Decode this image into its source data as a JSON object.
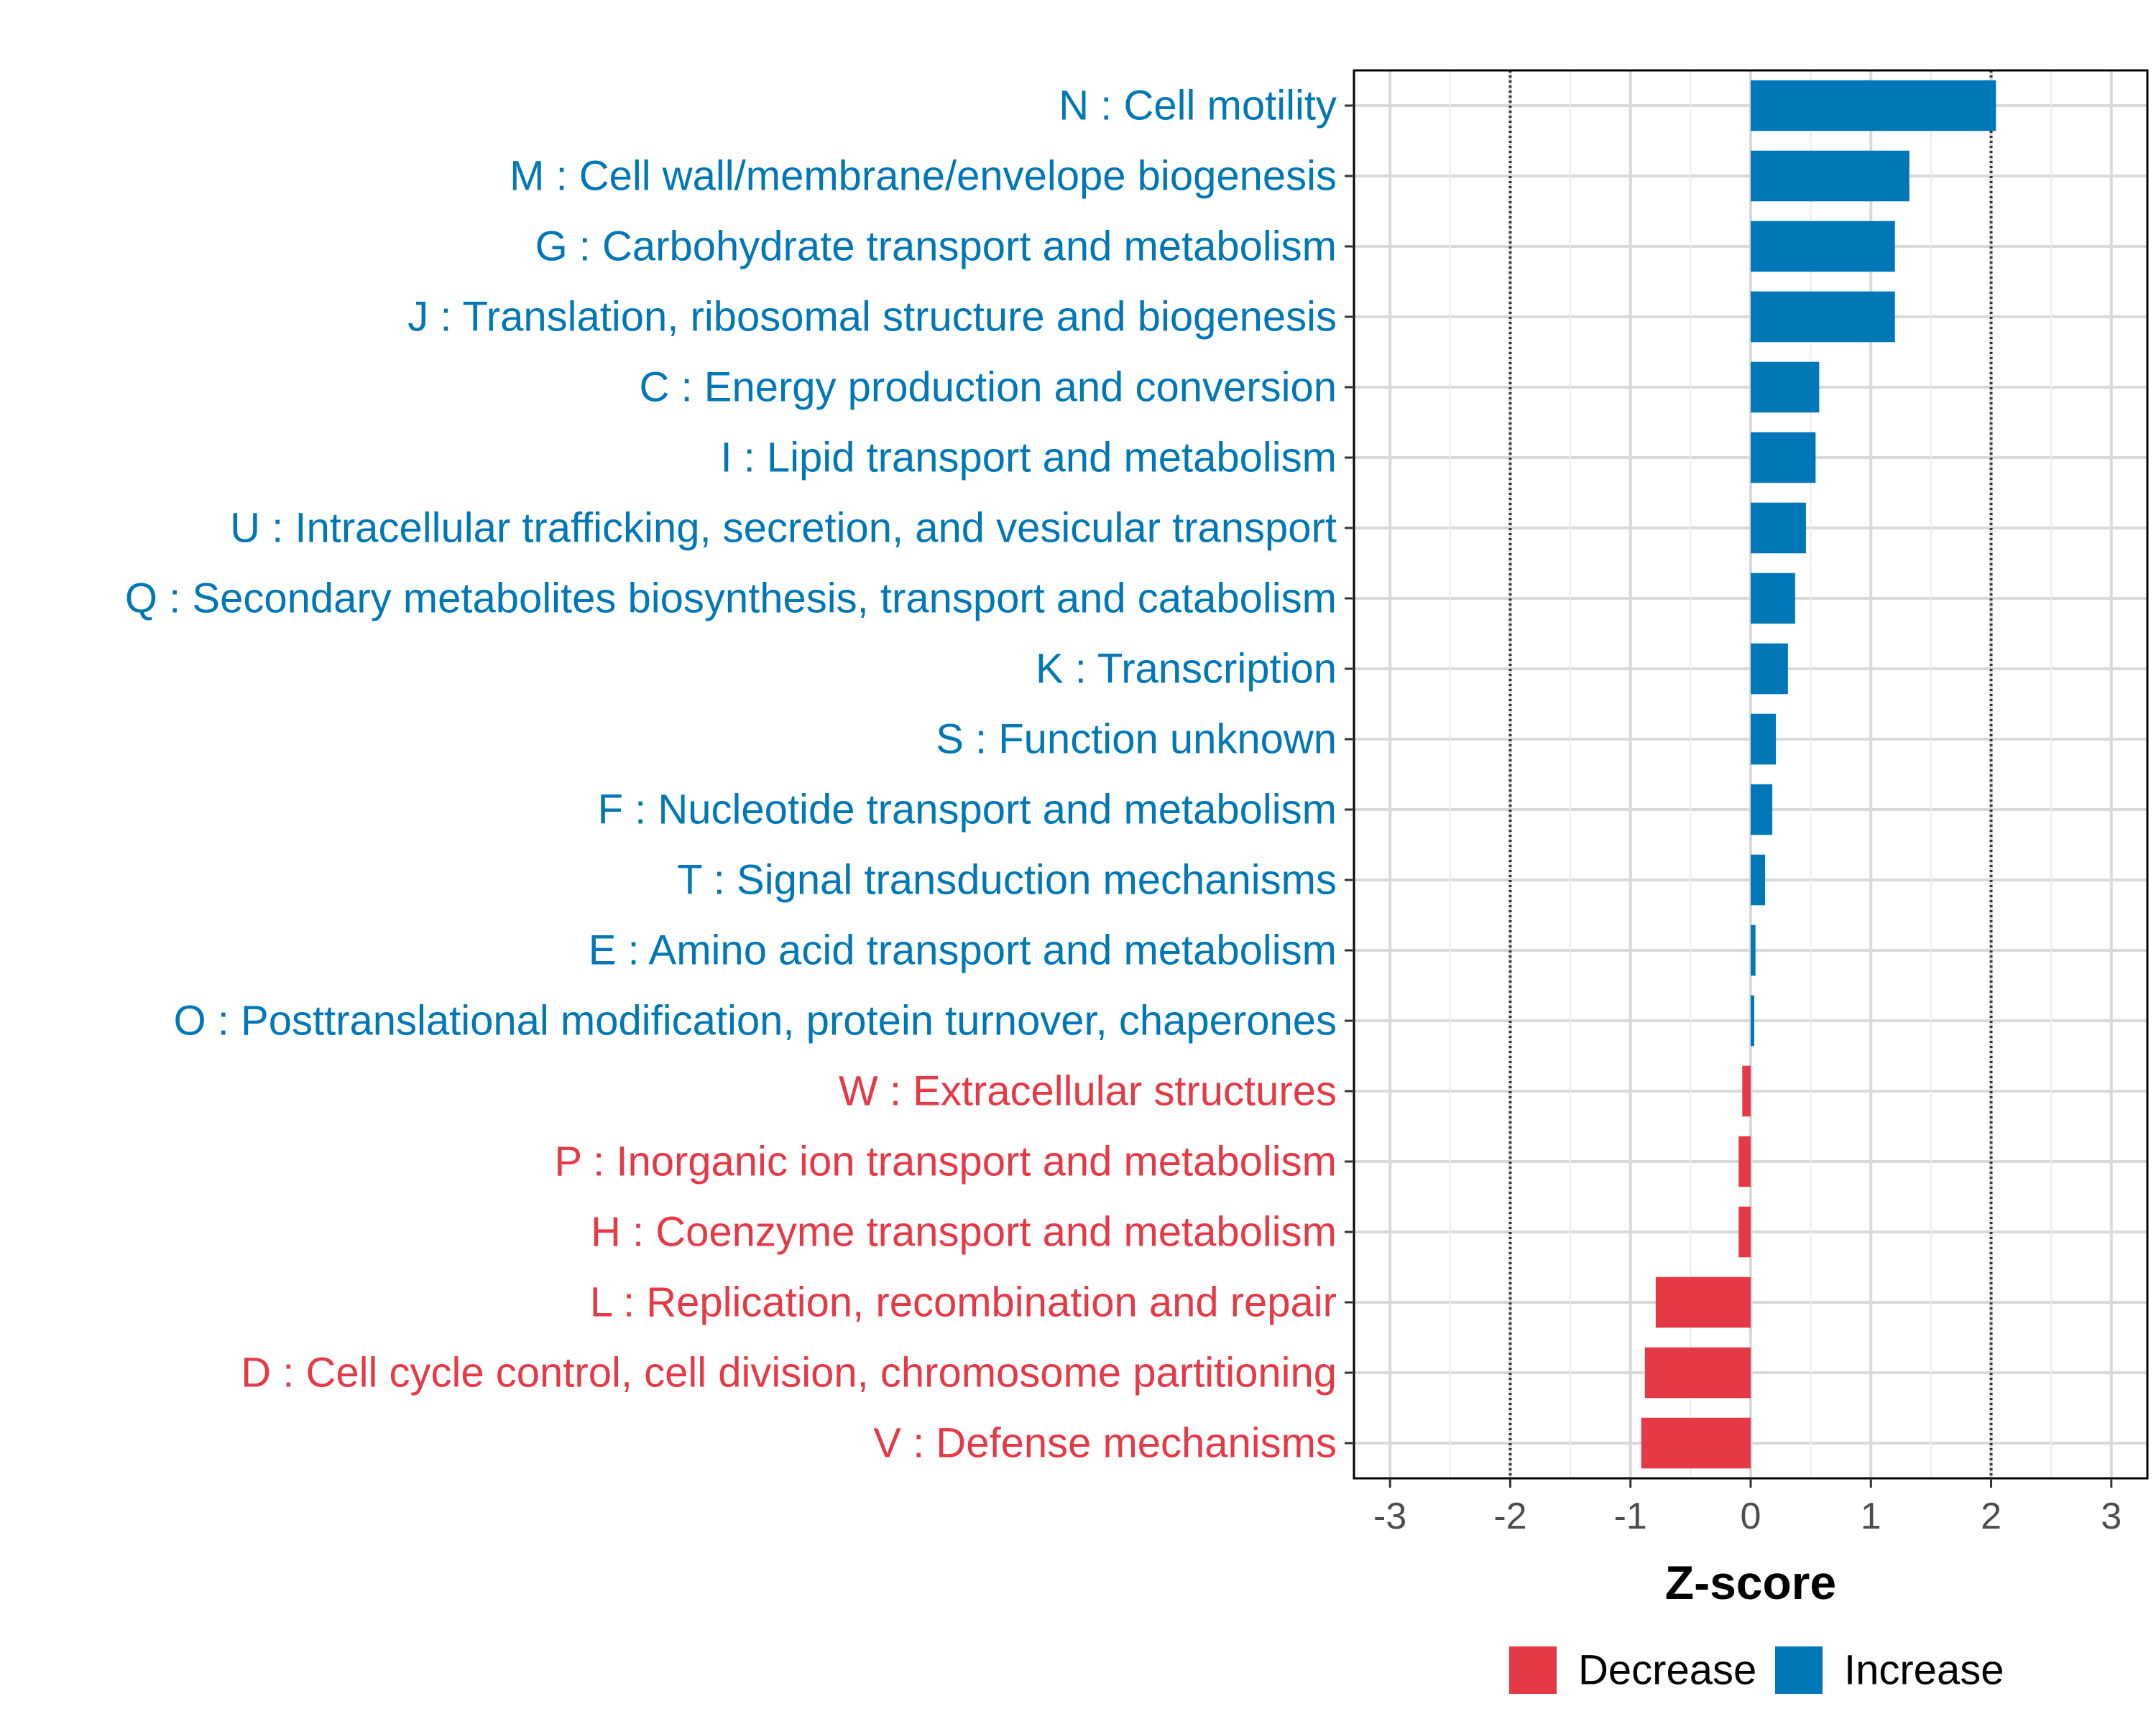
{
  "chart_data": {
    "type": "bar",
    "orientation": "horizontal",
    "title": "",
    "xlabel": "Z-score",
    "ylabel": "",
    "xlim": [
      -3.3,
      3.3
    ],
    "xticks": [
      -3,
      -2,
      -1,
      0,
      1,
      2,
      3
    ],
    "reference_lines": [
      -2,
      2
    ],
    "grid": true,
    "colors": {
      "Decrease": "#e63946",
      "Increase": "#0077b6"
    },
    "categories": [
      "N : Cell motility",
      "M : Cell wall/membrane/envelope biogenesis",
      "G : Carbohydrate transport and metabolism",
      "J : Translation, ribosomal structure and biogenesis",
      "C : Energy production and conversion",
      "I : Lipid transport and metabolism",
      "U : Intracellular trafficking, secretion, and vesicular transport",
      "Q : Secondary metabolites biosynthesis, transport and catabolism",
      "K : Transcription",
      "S : Function unknown",
      "F : Nucleotide transport and metabolism",
      "T : Signal transduction mechanisms",
      "E : Amino acid transport and metabolism",
      "O : Posttranslational modification, protein turnover, chaperones",
      "W : Extracellular structures",
      "P : Inorganic ion transport and metabolism",
      "H : Coenzyme transport and metabolism",
      "L : Replication, recombination and repair",
      "D : Cell cycle control, cell division, chromosome partitioning",
      "V : Defense mechanisms"
    ],
    "values": [
      2.04,
      1.32,
      1.2,
      1.2,
      0.57,
      0.54,
      0.46,
      0.37,
      0.31,
      0.21,
      0.18,
      0.12,
      0.04,
      0.03,
      -0.07,
      -0.1,
      -0.1,
      -0.79,
      -0.88,
      -0.91
    ],
    "groups": [
      "Increase",
      "Increase",
      "Increase",
      "Increase",
      "Increase",
      "Increase",
      "Increase",
      "Increase",
      "Increase",
      "Increase",
      "Increase",
      "Increase",
      "Increase",
      "Increase",
      "Decrease",
      "Decrease",
      "Decrease",
      "Decrease",
      "Decrease",
      "Decrease"
    ],
    "legend": {
      "position": "bottom",
      "entries": [
        {
          "label": "Decrease",
          "color": "#e63946"
        },
        {
          "label": "Increase",
          "color": "#0077b6"
        }
      ]
    }
  }
}
